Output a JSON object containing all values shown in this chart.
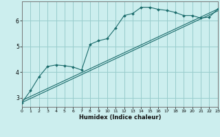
{
  "xlabel": "Humidex (Indice chaleur)",
  "background_color": "#cceeee",
  "grid_color": "#99cccc",
  "line_color": "#1a6b6b",
  "xlim": [
    0,
    23
  ],
  "ylim": [
    2.65,
    6.75
  ],
  "x_ticks": [
    0,
    1,
    2,
    3,
    4,
    5,
    6,
    7,
    8,
    9,
    10,
    11,
    12,
    13,
    14,
    15,
    16,
    17,
    18,
    19,
    20,
    21,
    22,
    23
  ],
  "y_ticks": [
    3,
    4,
    5,
    6
  ],
  "curve1_x": [
    0,
    1,
    2,
    3,
    4,
    5,
    6,
    7,
    8,
    9,
    10,
    11,
    12,
    13,
    14,
    15,
    16,
    17,
    18,
    19,
    20,
    21,
    22,
    23
  ],
  "curve1_y": [
    2.82,
    3.28,
    3.82,
    4.22,
    4.28,
    4.25,
    4.2,
    4.08,
    5.08,
    5.22,
    5.3,
    5.72,
    6.2,
    6.28,
    6.52,
    6.52,
    6.44,
    6.4,
    6.32,
    6.2,
    6.2,
    6.1,
    6.14,
    6.45
  ],
  "line2_x": [
    0,
    23
  ],
  "line2_y": [
    2.82,
    6.38
  ],
  "line3_x": [
    0,
    23
  ],
  "line3_y": [
    2.9,
    6.45
  ]
}
